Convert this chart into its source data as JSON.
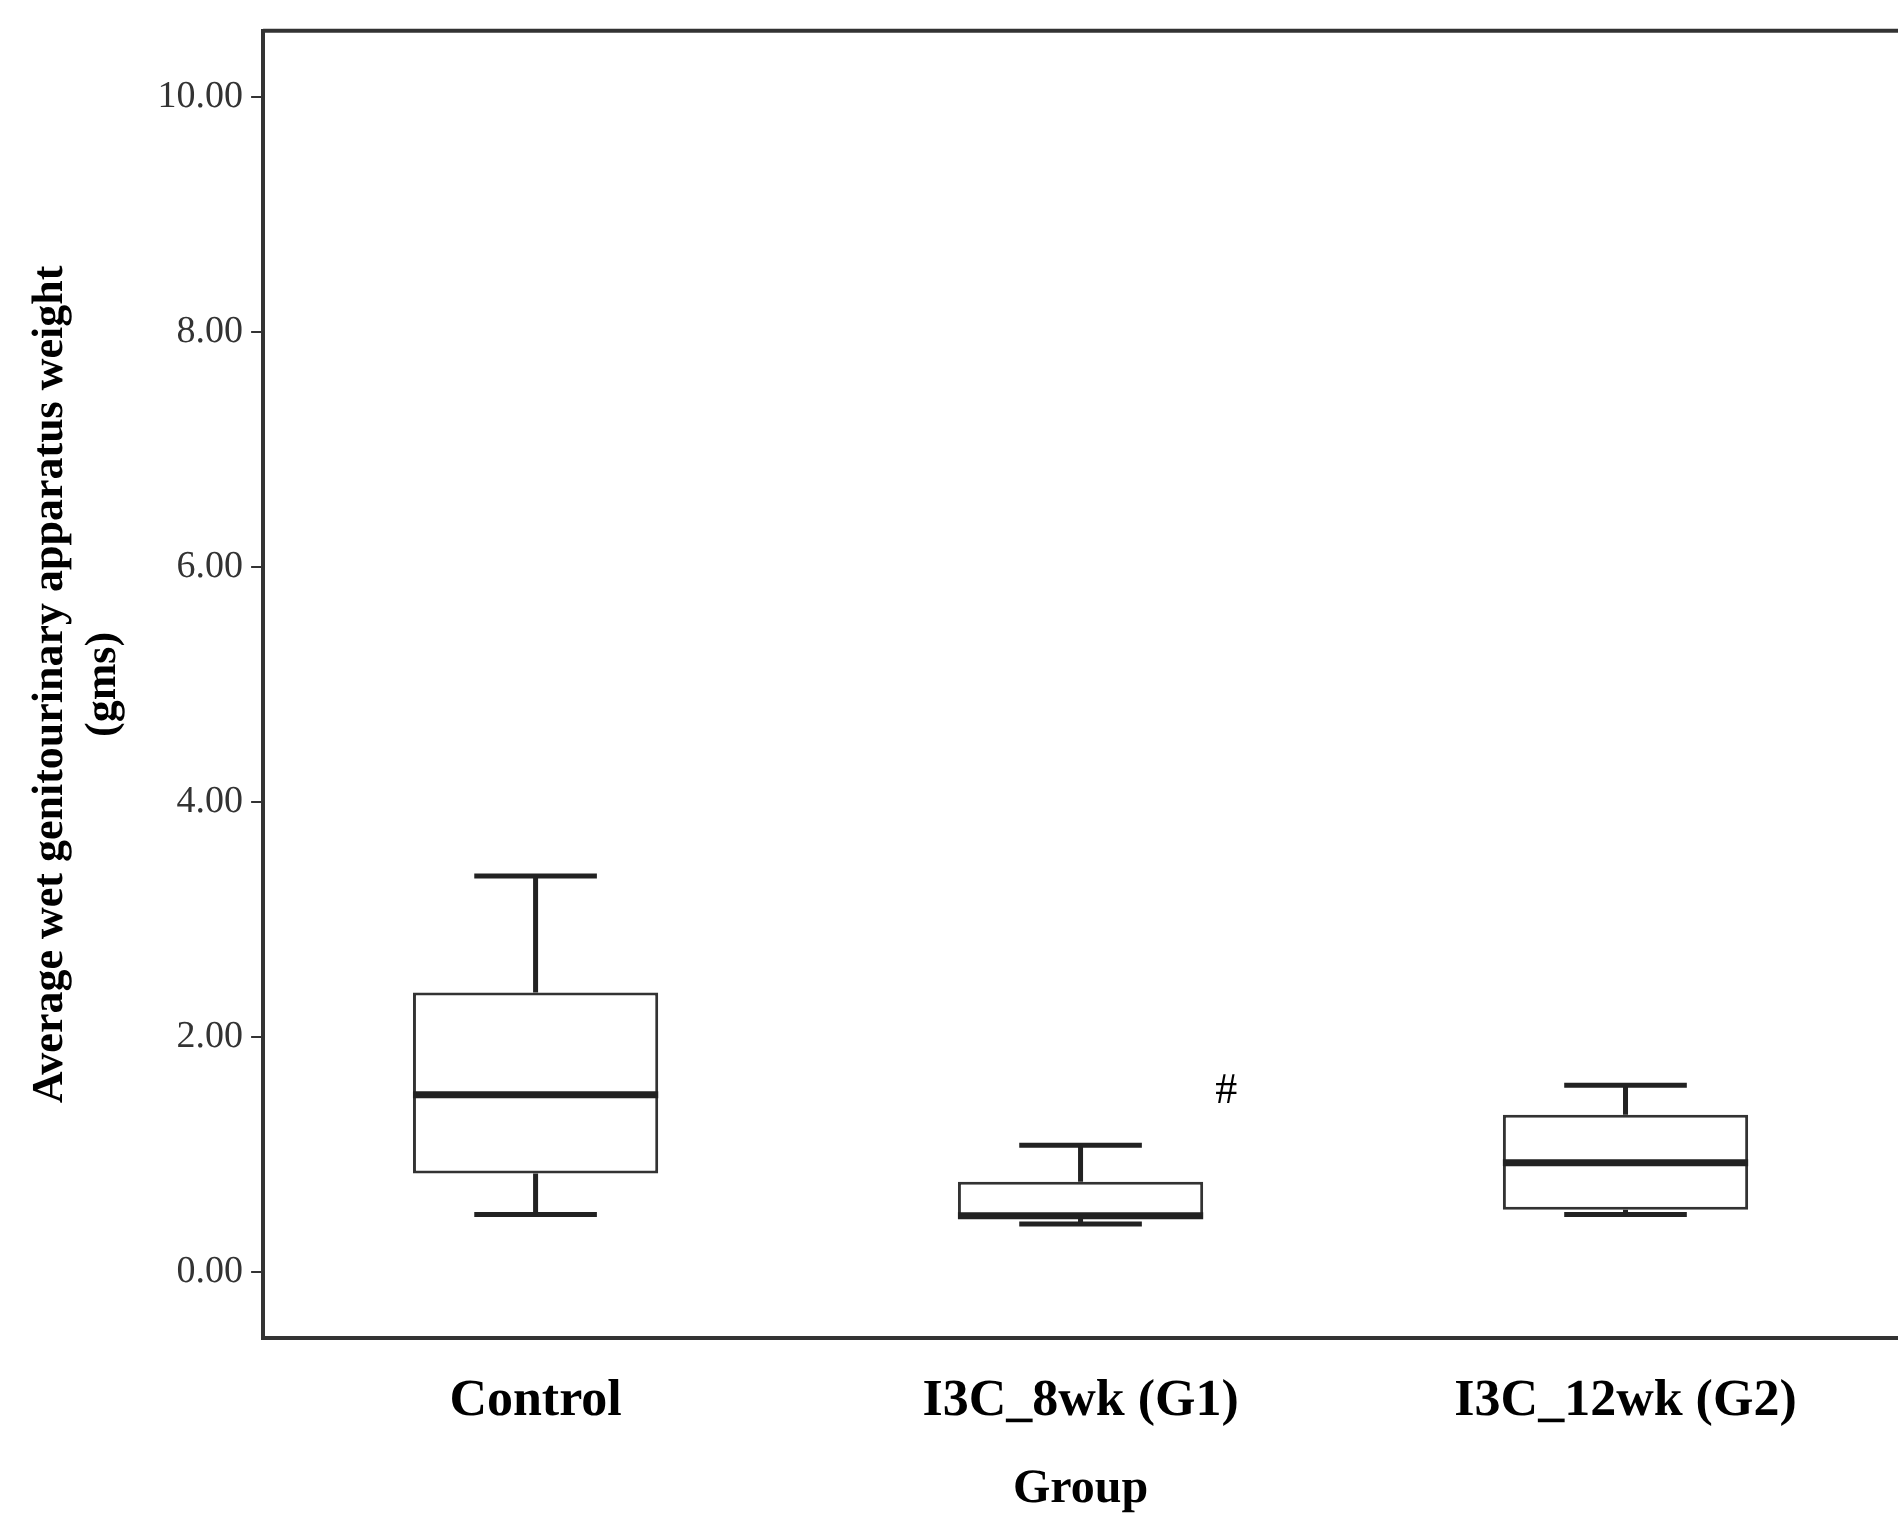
{
  "chart_data": {
    "type": "box",
    "xlabel": "Group",
    "ylabel": "Average wet genitourinary apparatus weight (gms)",
    "categories": [
      "Control",
      "I3C_8wk (G1)",
      "I3C_12wk (G2)"
    ],
    "boxes": [
      {
        "low": 0.49,
        "q1": 0.84,
        "median": 1.51,
        "q3": 2.38,
        "high": 3.37
      },
      {
        "low": 0.41,
        "q1": 0.46,
        "median": 0.48,
        "q3": 0.77,
        "high": 1.08
      },
      {
        "low": 0.49,
        "q1": 0.53,
        "median": 0.93,
        "q3": 1.34,
        "high": 1.59
      }
    ],
    "color": "#333333",
    "ylim": [
      -0.56,
      10.56
    ],
    "yticks": [
      {
        "value": 0,
        "label": "0.00"
      },
      {
        "value": 2,
        "label": "2.00"
      },
      {
        "value": 4,
        "label": "4.00"
      },
      {
        "value": 6,
        "label": "6.00"
      },
      {
        "value": 8,
        "label": "8.00"
      },
      {
        "value": 10,
        "label": "10.00"
      }
    ],
    "grid": false,
    "legend": false,
    "annotations": [
      "#"
    ]
  }
}
